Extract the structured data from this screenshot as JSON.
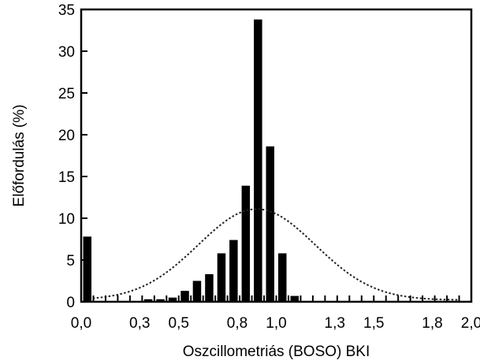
{
  "chart_data": {
    "type": "bar",
    "xlabel": "Oszcillometriás (BOSO) BKI",
    "ylabel": "Előfordulás (%)",
    "ylim": [
      0,
      35
    ],
    "yticks": [
      0,
      5,
      10,
      15,
      20,
      25,
      30,
      35
    ],
    "xlim": [
      0.0,
      2.0
    ],
    "xtick_labels": [
      {
        "value": 0.0,
        "label": "0,0"
      },
      {
        "value": 0.3,
        "label": "0,3"
      },
      {
        "value": 0.5,
        "label": "0,5"
      },
      {
        "value": 0.8,
        "label": "0,8"
      },
      {
        "value": 1.0,
        "label": "1,0"
      },
      {
        "value": 1.3,
        "label": "1,3"
      },
      {
        "value": 1.5,
        "label": "1,5"
      },
      {
        "value": 1.8,
        "label": "1,8"
      },
      {
        "value": 2.0,
        "label": "2,0"
      }
    ],
    "bin_width": 0.0625,
    "series": [
      {
        "x": [
          0.0,
          0.3125,
          0.375,
          0.4375,
          0.5,
          0.5625,
          0.625,
          0.6875,
          0.75,
          0.8125,
          0.875,
          0.9375,
          1.0,
          1.0625,
          1.125,
          1.1875,
          1.25
        ],
        "values": [
          7.8,
          0.3,
          0.3,
          0.5,
          1.3,
          2.5,
          3.3,
          5.8,
          7.4,
          13.9,
          33.8,
          18.6,
          5.8,
          0.7,
          0,
          0,
          0
        ]
      }
    ],
    "normal_curve": {
      "style": "dotted",
      "mean": 0.9,
      "sd": 0.3,
      "peak": 11.1,
      "baseline": 0.2
    },
    "grid": false,
    "minor_ticks_step": 0.0625
  }
}
